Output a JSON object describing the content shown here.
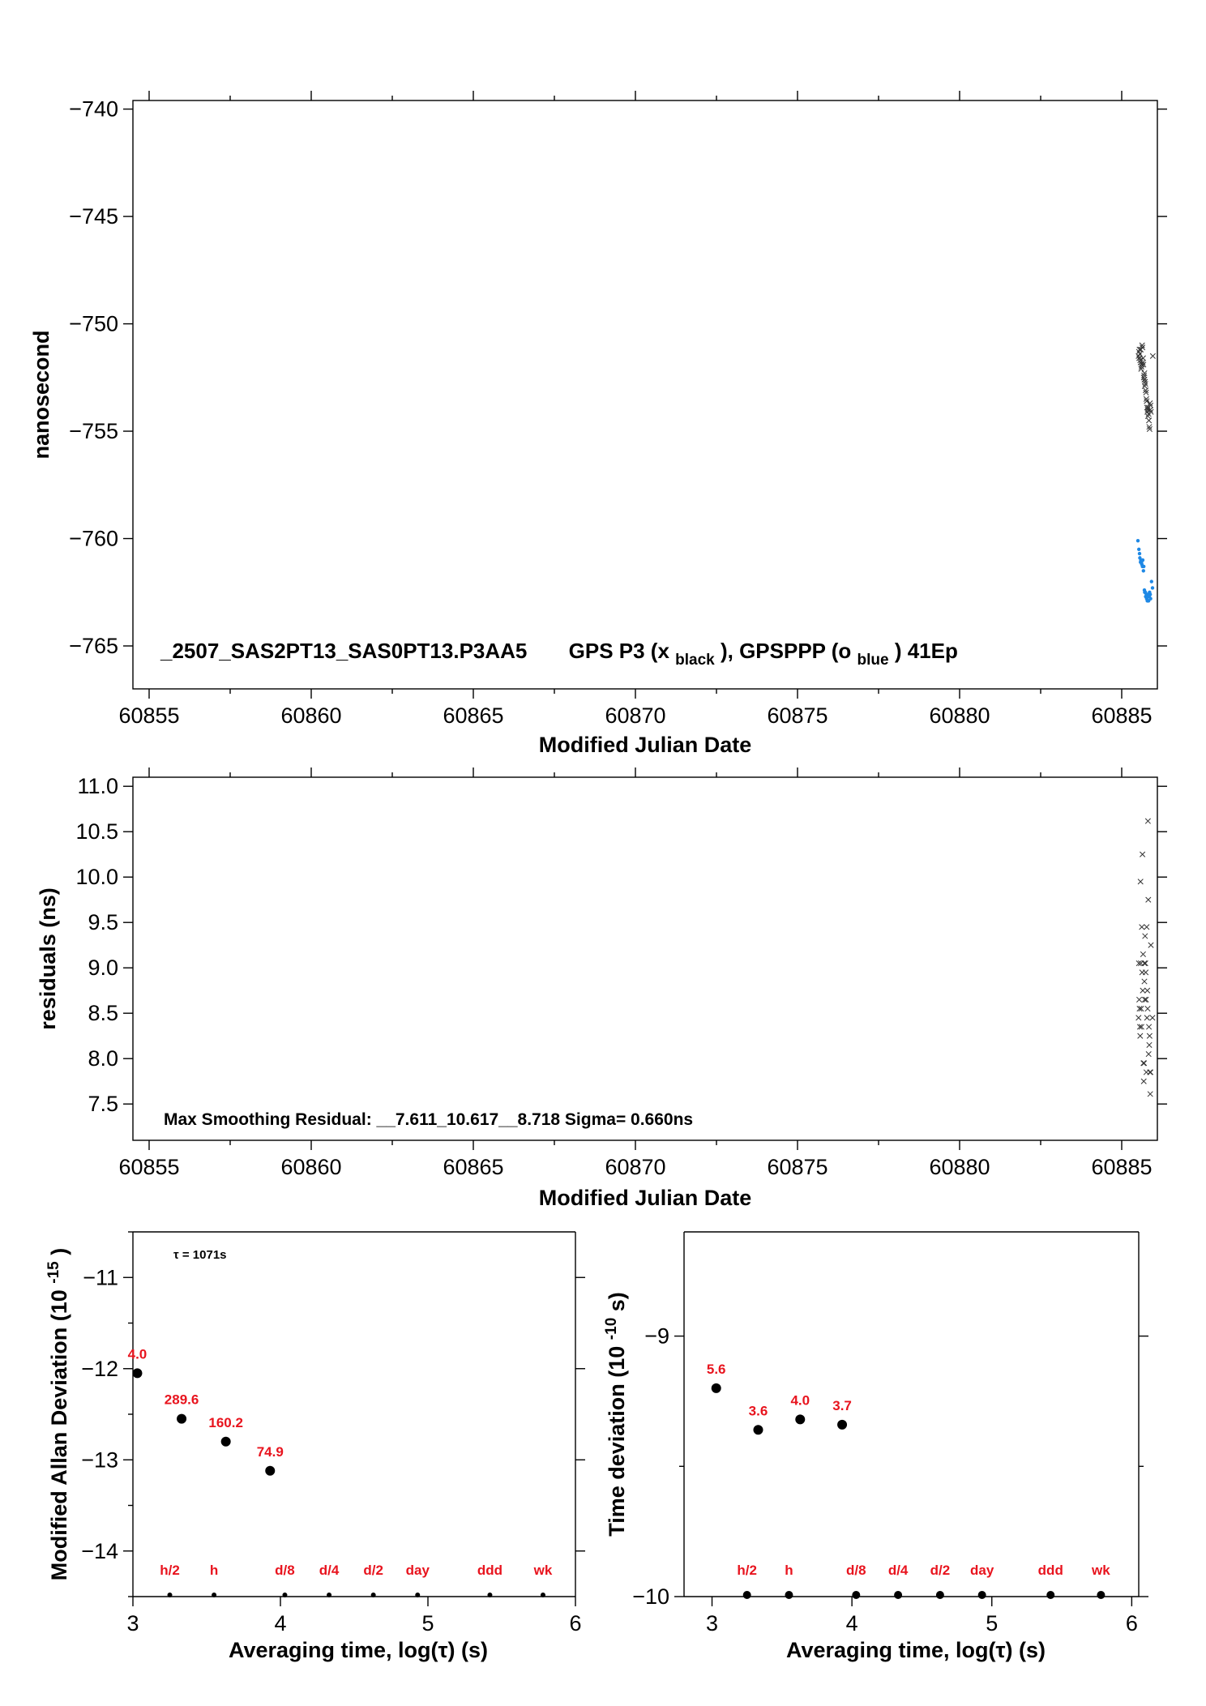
{
  "colors": {
    "black_series": "#333333",
    "blue_series": "#1e88e5",
    "red_labels": "#e8141e"
  },
  "chart_data": [
    {
      "id": "phase",
      "type": "scatter",
      "ylabel": "nanosecond",
      "xlabel": "Modified Julian Date",
      "xlim": [
        60854.5,
        60886.1
      ],
      "ylim": [
        -767,
        -739.6
      ],
      "xticks": [
        60855,
        60860,
        60865,
        60870,
        60875,
        60880,
        60885
      ],
      "yticks": [
        -740,
        -745,
        -750,
        -755,
        -760,
        -765
      ],
      "annotation": {
        "title": "_2507_SAS2PT13_SAS0PT13.P3AA5",
        "gps_p3": "GPS P3 (x",
        "black_sub": "black",
        "sep": "),  GPSPPP (o",
        "blue_sub": "blue",
        "tail": ")  41Ep"
      },
      "series": [
        {
          "name": "GPS P3",
          "marker": "x",
          "x": [
            60885.52,
            60885.55,
            60885.58,
            60885.61,
            60885.64,
            60885.67,
            60885.7,
            60885.73,
            60885.76,
            60885.79,
            60885.82,
            60885.85,
            60885.88,
            60885.53,
            60885.57,
            60885.6,
            60885.63,
            60885.66,
            60885.69,
            60885.72,
            60885.75,
            60885.78,
            60885.81,
            60885.84,
            60885.87,
            60885.9,
            60885.56,
            60885.62,
            60885.68,
            60885.74,
            60885.8,
            60885.86,
            60885.59,
            60885.65,
            60885.71,
            60885.77,
            60885.83,
            60885.89,
            60885.54,
            60885.7,
            60885.96
          ],
          "y": [
            -751.5,
            -751.2,
            -751.8,
            -752.0,
            -751.1,
            -751.9,
            -752.6,
            -752.8,
            -753.5,
            -754.1,
            -753.9,
            -754.8,
            -754.0,
            -751.3,
            -751.7,
            -752.1,
            -751.0,
            -751.6,
            -752.4,
            -752.7,
            -753.2,
            -753.9,
            -754.3,
            -754.5,
            -753.7,
            -754.1,
            -751.4,
            -751.9,
            -752.5,
            -753.1,
            -754.0,
            -754.9,
            -751.2,
            -751.8,
            -752.9,
            -753.6,
            -754.2,
            -753.8,
            -751.6,
            -752.3,
            -751.5
          ]
        },
        {
          "name": "GPSPPP",
          "marker": "o",
          "x": [
            60885.5,
            60885.53,
            60885.56,
            60885.59,
            60885.62,
            60885.65,
            60885.68,
            60885.71,
            60885.74,
            60885.77,
            60885.8,
            60885.83,
            60885.86,
            60885.89,
            60885.58,
            60885.64,
            60885.7,
            60885.76,
            60885.82,
            60885.88,
            60885.55,
            60885.61,
            60885.67,
            60885.73,
            60885.79,
            60885.85,
            60885.92,
            60885.95
          ],
          "y": [
            -760.1,
            -760.5,
            -760.9,
            -761.0,
            -761.2,
            -761.0,
            -761.3,
            -762.5,
            -762.7,
            -762.8,
            -762.6,
            -762.9,
            -762.5,
            -762.8,
            -761.1,
            -761.3,
            -762.4,
            -762.6,
            -762.7,
            -762.6,
            -760.7,
            -761.1,
            -761.5,
            -762.5,
            -762.9,
            -762.7,
            -762.0,
            -762.3
          ]
        }
      ]
    },
    {
      "id": "residuals",
      "type": "scatter",
      "ylabel": "residuals (ns)",
      "xlabel": "Modified Julian Date",
      "xlim": [
        60854.5,
        60886.1
      ],
      "ylim": [
        7.1,
        11.1
      ],
      "xticks": [
        60855,
        60860,
        60865,
        60870,
        60875,
        60880,
        60885
      ],
      "yticks": [
        7.5,
        8.0,
        8.5,
        9.0,
        9.5,
        10.0,
        10.5,
        11.0
      ],
      "yticklabels": [
        "7.5",
        "8.0",
        "8.5",
        "9.0",
        "9.5",
        "10.0",
        "10.5",
        "11.0"
      ],
      "annotation": "Max Smoothing Residual: __7.611_10.617__8.718  Sigma= 0.660ns",
      "series": [
        {
          "name": "residuals",
          "marker": "x",
          "x": [
            60885.52,
            60885.55,
            60885.58,
            60885.61,
            60885.64,
            60885.67,
            60885.7,
            60885.73,
            60885.76,
            60885.79,
            60885.82,
            60885.85,
            60885.88,
            60885.53,
            60885.57,
            60885.6,
            60885.63,
            60885.66,
            60885.69,
            60885.72,
            60885.75,
            60885.78,
            60885.81,
            60885.84,
            60885.87,
            60885.9,
            60885.56,
            60885.62,
            60885.68,
            60885.74,
            60885.8,
            60885.86,
            60885.59,
            60885.65,
            60885.71,
            60885.77,
            60885.83,
            60885.89,
            60885.54,
            60885.7,
            60885.95
          ],
          "y": [
            8.45,
            8.55,
            9.95,
            8.35,
            10.25,
            7.95,
            8.85,
            9.05,
            7.85,
            8.75,
            9.75,
            8.15,
            7.61,
            9.05,
            8.25,
            8.55,
            8.95,
            9.15,
            7.95,
            9.35,
            8.65,
            8.45,
            10.617,
            8.35,
            7.85,
            9.25,
            8.35,
            9.45,
            7.75,
            8.95,
            8.55,
            8.25,
            9.05,
            8.75,
            8.65,
            9.45,
            8.05,
            7.85,
            8.65,
            9.05,
            8.45
          ]
        }
      ]
    },
    {
      "id": "mdev",
      "type": "scatter",
      "ylabel": "Modified Allan Deviation (10",
      "ylabel_sup": "-15",
      "ylabel_tail": ")",
      "xlabel": "Averaging time, log(τ) (s)",
      "xlim": [
        3,
        6
      ],
      "ylim": [
        -14.5,
        -10.5
      ],
      "xticks": [
        3,
        4,
        5,
        6
      ],
      "yticks": [
        -11,
        -12,
        -13,
        -14
      ],
      "tau_note": "τ = 1071s",
      "points": [
        {
          "x": 3.03,
          "y": -12.05,
          "label": "4.0"
        },
        {
          "x": 3.33,
          "y": -12.55,
          "label": "289.6"
        },
        {
          "x": 3.63,
          "y": -12.8,
          "label": "160.2"
        },
        {
          "x": 3.93,
          "y": -13.12,
          "label": "74.9"
        }
      ],
      "markers": [
        {
          "x": 3.25,
          "label": "h/2"
        },
        {
          "x": 3.55,
          "label": "h"
        },
        {
          "x": 4.03,
          "label": "d/8"
        },
        {
          "x": 4.33,
          "label": "d/4"
        },
        {
          "x": 4.63,
          "label": "d/2"
        },
        {
          "x": 4.93,
          "label": "day"
        },
        {
          "x": 5.42,
          "label": "ddd"
        },
        {
          "x": 5.78,
          "label": "wk"
        }
      ]
    },
    {
      "id": "tdev",
      "type": "scatter",
      "ylabel": "Time deviation (10",
      "ylabel_sup": "-10",
      "ylabel_tail": " s)",
      "xlabel": "Averaging time, log(τ) (s)",
      "xlim": [
        2.8,
        6.05
      ],
      "ylim": [
        -10,
        -8.6
      ],
      "xticks": [
        3,
        4,
        5,
        6
      ],
      "yticks": [
        -9,
        -10
      ],
      "points": [
        {
          "x": 3.03,
          "y": -9.2,
          "label": "5.6"
        },
        {
          "x": 3.33,
          "y": -9.36,
          "label": "3.6"
        },
        {
          "x": 3.63,
          "y": -9.32,
          "label": "4.0"
        },
        {
          "x": 3.93,
          "y": -9.34,
          "label": "3.7"
        }
      ],
      "markers": [
        {
          "x": 3.25,
          "label": "h/2"
        },
        {
          "x": 3.55,
          "label": "h"
        },
        {
          "x": 4.03,
          "label": "d/8"
        },
        {
          "x": 4.33,
          "label": "d/4"
        },
        {
          "x": 4.63,
          "label": "d/2"
        },
        {
          "x": 4.93,
          "label": "day"
        },
        {
          "x": 5.42,
          "label": "ddd"
        },
        {
          "x": 5.78,
          "label": "wk"
        }
      ]
    }
  ]
}
